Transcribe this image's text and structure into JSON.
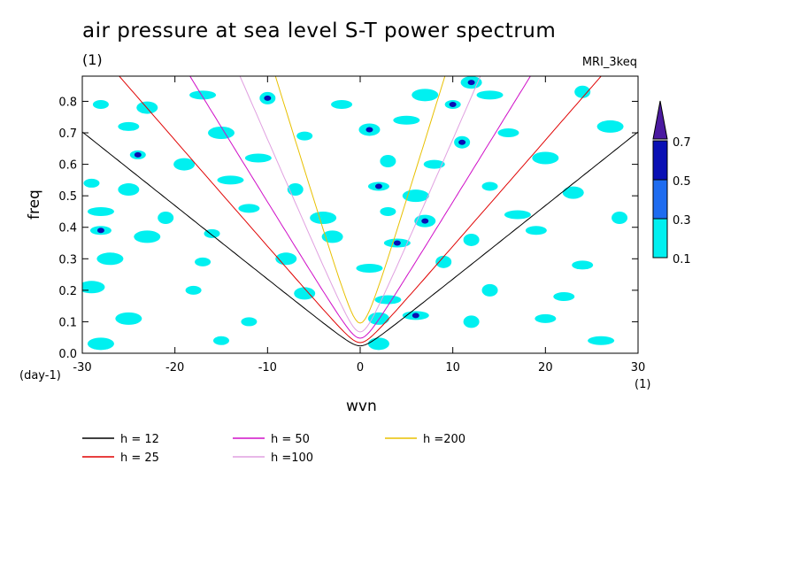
{
  "title": "air pressure at sea level S-T power spectrum",
  "units": "(1)",
  "model": "MRI_3keq",
  "chart_data": {
    "type": "contour",
    "xlabel": "wvn",
    "ylabel": "freq",
    "x_unit_label": "(1)",
    "y_unit_label": "(day-1)",
    "xlim": [
      -30,
      30
    ],
    "ylim": [
      0,
      0.88
    ],
    "x_ticks": [
      -30,
      -20,
      -10,
      0,
      10,
      20,
      30
    ],
    "y_ticks": [
      0.0,
      0.1,
      0.2,
      0.3,
      0.4,
      0.5,
      0.6,
      0.7,
      0.8
    ],
    "y_tick_labels": [
      "0.0",
      "0.1",
      "0.2",
      "0.3",
      "0.4",
      "0.5",
      "0.6",
      "0.7",
      "0.8"
    ],
    "colorbar": {
      "levels": [
        0.1,
        0.3,
        0.5,
        0.7
      ],
      "labels": [
        "0.1",
        "0.3",
        "0.5",
        "0.7"
      ],
      "colors": [
        "#00f0f0",
        "#1e6cf0",
        "#0a10b4",
        "#4b1aa0"
      ]
    },
    "dispersion_curves": [
      {
        "label": "h = 12",
        "h": 12,
        "color": "#000000"
      },
      {
        "label": "h = 25",
        "h": 25,
        "color": "#e00000"
      },
      {
        "label": "h = 50",
        "h": 50,
        "color": "#d010c8"
      },
      {
        "label": "h =100",
        "h": 100,
        "color": "#e0a0e0"
      },
      {
        "label": "h =200",
        "h": 200,
        "color": "#e8c000"
      }
    ],
    "blobs": [
      {
        "x": -28,
        "y": 0.79,
        "level": 1
      },
      {
        "x": -23,
        "y": 0.78,
        "level": 1
      },
      {
        "x": -17,
        "y": 0.82,
        "level": 1
      },
      {
        "x": -10,
        "y": 0.81,
        "level": 2
      },
      {
        "x": -2,
        "y": 0.79,
        "level": 1
      },
      {
        "x": 7,
        "y": 0.82,
        "level": 1
      },
      {
        "x": 10,
        "y": 0.79,
        "level": 2
      },
      {
        "x": 12,
        "y": 0.86,
        "level": 2
      },
      {
        "x": 14,
        "y": 0.82,
        "level": 1
      },
      {
        "x": 24,
        "y": 0.83,
        "level": 1
      },
      {
        "x": -25,
        "y": 0.72,
        "level": 1
      },
      {
        "x": -15,
        "y": 0.7,
        "level": 1
      },
      {
        "x": -6,
        "y": 0.69,
        "level": 1
      },
      {
        "x": 1,
        "y": 0.71,
        "level": 2
      },
      {
        "x": 5,
        "y": 0.74,
        "level": 1
      },
      {
        "x": 11,
        "y": 0.67,
        "level": 2
      },
      {
        "x": 16,
        "y": 0.7,
        "level": 1
      },
      {
        "x": 27,
        "y": 0.72,
        "level": 1
      },
      {
        "x": -24,
        "y": 0.63,
        "level": 2
      },
      {
        "x": -19,
        "y": 0.6,
        "level": 1
      },
      {
        "x": -11,
        "y": 0.62,
        "level": 1
      },
      {
        "x": 3,
        "y": 0.61,
        "level": 1
      },
      {
        "x": 8,
        "y": 0.6,
        "level": 1
      },
      {
        "x": 20,
        "y": 0.62,
        "level": 1
      },
      {
        "x": -29,
        "y": 0.54,
        "level": 1
      },
      {
        "x": -25,
        "y": 0.52,
        "level": 1
      },
      {
        "x": -14,
        "y": 0.55,
        "level": 1
      },
      {
        "x": -7,
        "y": 0.52,
        "level": 1
      },
      {
        "x": 2,
        "y": 0.53,
        "level": 2
      },
      {
        "x": 6,
        "y": 0.5,
        "level": 1
      },
      {
        "x": 14,
        "y": 0.53,
        "level": 1
      },
      {
        "x": 23,
        "y": 0.51,
        "level": 1
      },
      {
        "x": -28,
        "y": 0.45,
        "level": 1
      },
      {
        "x": -21,
        "y": 0.43,
        "level": 1
      },
      {
        "x": -12,
        "y": 0.46,
        "level": 1
      },
      {
        "x": -4,
        "y": 0.43,
        "level": 1
      },
      {
        "x": 3,
        "y": 0.45,
        "level": 1
      },
      {
        "x": 7,
        "y": 0.42,
        "level": 2
      },
      {
        "x": 17,
        "y": 0.44,
        "level": 1
      },
      {
        "x": 28,
        "y": 0.43,
        "level": 1
      },
      {
        "x": -28,
        "y": 0.39,
        "level": 2
      },
      {
        "x": -23,
        "y": 0.37,
        "level": 1
      },
      {
        "x": -16,
        "y": 0.38,
        "level": 1
      },
      {
        "x": -3,
        "y": 0.37,
        "level": 1
      },
      {
        "x": 4,
        "y": 0.35,
        "level": 2
      },
      {
        "x": 12,
        "y": 0.36,
        "level": 1
      },
      {
        "x": 19,
        "y": 0.39,
        "level": 1
      },
      {
        "x": -27,
        "y": 0.3,
        "level": 1
      },
      {
        "x": -17,
        "y": 0.29,
        "level": 1
      },
      {
        "x": -8,
        "y": 0.3,
        "level": 1
      },
      {
        "x": 1,
        "y": 0.27,
        "level": 1
      },
      {
        "x": 9,
        "y": 0.29,
        "level": 1
      },
      {
        "x": 24,
        "y": 0.28,
        "level": 1
      },
      {
        "x": -29,
        "y": 0.21,
        "level": 1
      },
      {
        "x": -18,
        "y": 0.2,
        "level": 1
      },
      {
        "x": -6,
        "y": 0.19,
        "level": 1
      },
      {
        "x": 3,
        "y": 0.17,
        "level": 1
      },
      {
        "x": 14,
        "y": 0.2,
        "level": 1
      },
      {
        "x": 22,
        "y": 0.18,
        "level": 1
      },
      {
        "x": -25,
        "y": 0.11,
        "level": 1
      },
      {
        "x": -12,
        "y": 0.1,
        "level": 1
      },
      {
        "x": 2,
        "y": 0.11,
        "level": 1
      },
      {
        "x": 6,
        "y": 0.12,
        "level": 2
      },
      {
        "x": 12,
        "y": 0.1,
        "level": 1
      },
      {
        "x": 20,
        "y": 0.11,
        "level": 1
      },
      {
        "x": -28,
        "y": 0.03,
        "level": 1
      },
      {
        "x": -15,
        "y": 0.04,
        "level": 1
      },
      {
        "x": 2,
        "y": 0.03,
        "level": 1
      },
      {
        "x": 26,
        "y": 0.04,
        "level": 1
      }
    ]
  }
}
